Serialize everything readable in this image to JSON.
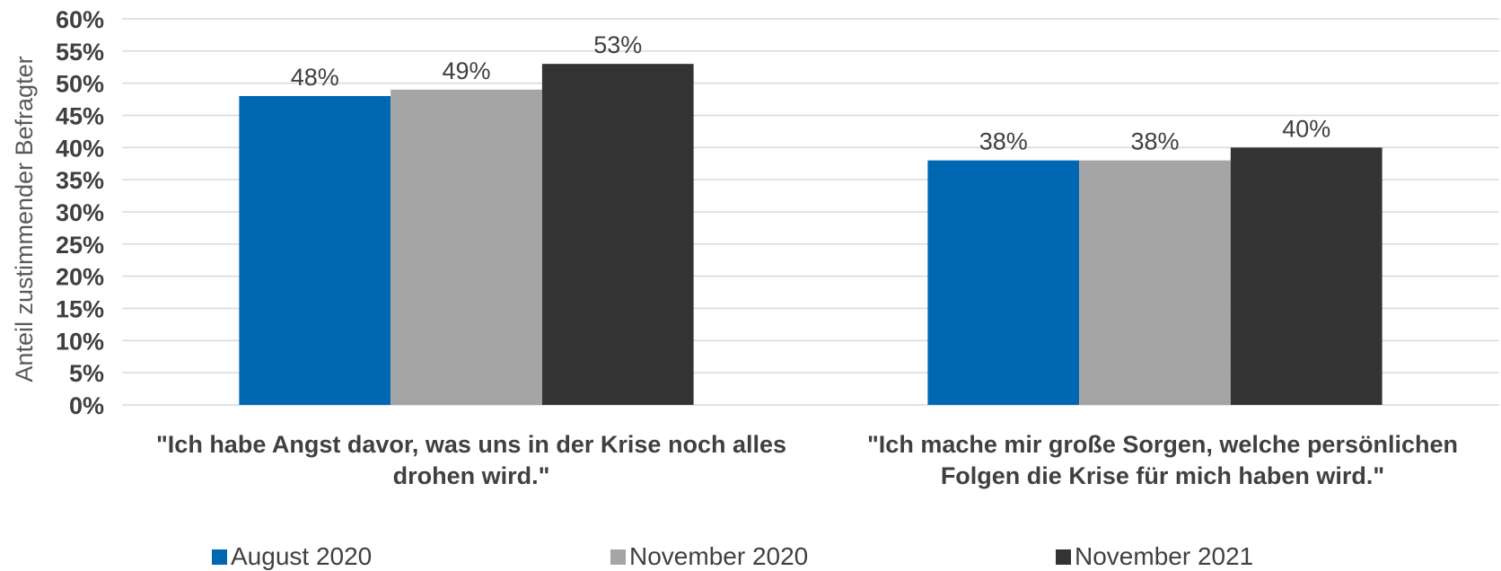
{
  "chart_data": {
    "type": "bar",
    "categories": [
      "\"Ich habe Angst davor, was uns in der Krise noch alles drohen wird.\"",
      "\"Ich mache mir große Sorgen, welche persönlichen Folgen die Krise für mich haben wird.\""
    ],
    "series": [
      {
        "name": "August 2020",
        "values": [
          48,
          38
        ],
        "color": "#0067B2"
      },
      {
        "name": "November 2020",
        "values": [
          49,
          38
        ],
        "color": "#A5A5A5"
      },
      {
        "name": "November 2021",
        "values": [
          53,
          40
        ],
        "color": "#333333"
      }
    ],
    "data_labels": [
      [
        "48%",
        "38%"
      ],
      [
        "49%",
        "38%"
      ],
      [
        "53%",
        "40%"
      ]
    ],
    "ylabel": "Anteil zustimmender Befragter",
    "ylim": [
      0,
      60
    ],
    "yticks": [
      "0%",
      "5%",
      "10%",
      "15%",
      "20%",
      "25%",
      "30%",
      "35%",
      "40%",
      "45%",
      "50%",
      "55%",
      "60%"
    ],
    "grid": true,
    "legend_position": "bottom"
  }
}
